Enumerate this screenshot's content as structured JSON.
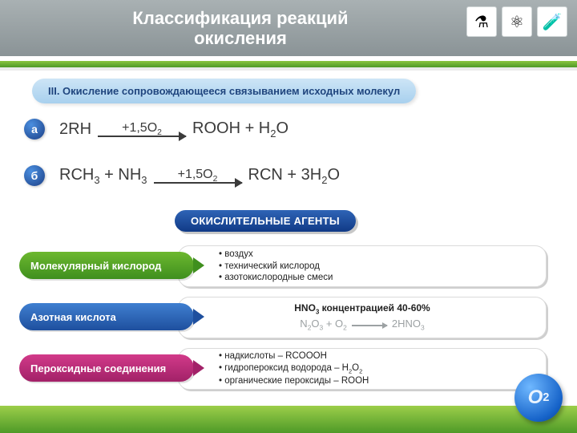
{
  "header": {
    "title_l1": "Классификация реакций",
    "title_l2": "окисления",
    "icons": [
      "molecule-icon",
      "atom-icon",
      "flask-icon"
    ],
    "icon_glyphs": [
      "⚗",
      "⚛",
      "🧪"
    ]
  },
  "subheading": "III. Окисление сопровождающееся связыванием исходных молекул",
  "equations": {
    "a_badge": "а",
    "a_left": "2RH",
    "a_arrow_top": "+1,5O",
    "a_arrow_top_sub": "2",
    "a_right": "ROOH + H",
    "a_right_sub": "2",
    "a_right_tail": "O",
    "b_badge": "б",
    "b_left_1": "RCH",
    "b_left_1_sub": "3",
    "b_left_mid": " + NH",
    "b_left_2_sub": "3",
    "b_arrow_top": "+1,5O",
    "b_arrow_top_sub": "2",
    "b_right_1": "RCN + 3H",
    "b_right_sub": "2",
    "b_right_tail": "O"
  },
  "agents_title": "ОКИСЛИТЕЛЬНЫЕ АГЕНТЫ",
  "rows": {
    "r1_label": "Молекулярный кислород",
    "r1_b1": "• воздух",
    "r1_b2": "• технический кислород",
    "r1_b3": "• азотокислородные смеси",
    "r2_label": "Азотная кислота",
    "r2_line1_a": "HNO",
    "r2_line1_a_sub": "3",
    "r2_line1_b": " концентрацией 40-60%",
    "r2_line2_left_a": "N",
    "r2_line2_left_a_sub": "2",
    "r2_line2_left_b": "O",
    "r2_line2_left_b_sub": "3",
    "r2_line2_left_c": " + O",
    "r2_line2_left_c_sub": "2",
    "r2_line2_right_a": "2HNO",
    "r2_line2_right_sub": "3",
    "r3_label": "Пероксидные соединения",
    "r3_b1": "• надкислоты – RCOOOH",
    "r3_b2_a": "• гидропероксид водорода – H",
    "r3_b2_sub1": "2",
    "r3_b2_b": "O",
    "r3_b2_sub2": "2",
    "r3_b3": "• органические пероксиды – ROOH"
  },
  "o2_badge": "O",
  "o2_badge_sub": "2",
  "colors": {
    "header_bg": "#8a9396",
    "accent_green": "#4e9a28",
    "pill_text": "#1f457e",
    "agents_bg": "#103a86",
    "row_green": "#3f8f1e",
    "row_blue": "#1e4f9e",
    "row_pink": "#a22168"
  }
}
